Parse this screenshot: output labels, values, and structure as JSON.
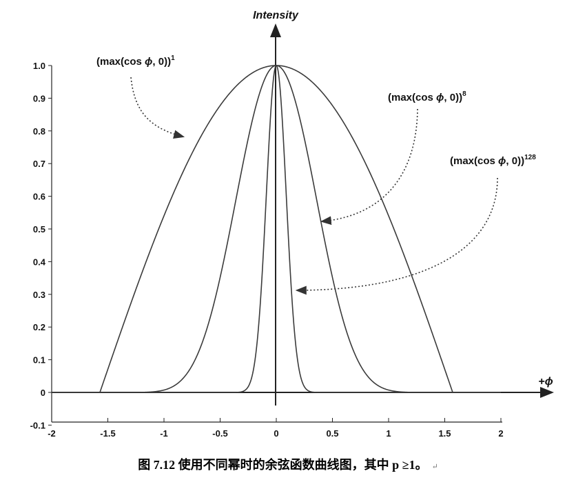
{
  "chart_data": {
    "type": "line",
    "xlabel": "+ϕ",
    "ylabel": "Intensity",
    "xlim": [
      -2,
      2
    ],
    "ylim": [
      -0.1,
      1.0
    ],
    "xticks": [
      "-2",
      "-1.5",
      "-1",
      "-0.5",
      "0",
      "0.5",
      "1",
      "1.5",
      "2"
    ],
    "yticks": [
      "-0.1",
      "0",
      "0.1",
      "0.2",
      "0.3",
      "0.4",
      "0.5",
      "0.6",
      "0.7",
      "0.8",
      "0.9",
      "1.0"
    ],
    "grid": false,
    "series": [
      {
        "name": "(max(cos ϕ, 0))^1",
        "power": 1,
        "x": [
          -2,
          -1.5708,
          -1.5,
          -1.25,
          -1,
          -0.75,
          -0.5,
          -0.25,
          0,
          0.25,
          0.5,
          0.75,
          1,
          1.25,
          1.5,
          1.5708,
          2
        ],
        "y": [
          0,
          0,
          0.071,
          0.315,
          0.54,
          0.732,
          0.878,
          0.969,
          1.0,
          0.969,
          0.878,
          0.732,
          0.54,
          0.315,
          0.071,
          0,
          0
        ]
      },
      {
        "name": "(max(cos ϕ, 0))^8",
        "power": 8,
        "x": [
          -2,
          -1.5,
          -1.25,
          -1,
          -0.75,
          -0.5,
          -0.25,
          0,
          0.25,
          0.5,
          0.75,
          1,
          1.25,
          1.5,
          2
        ],
        "y": [
          0,
          0,
          0.0001,
          0.007,
          0.082,
          0.353,
          0.778,
          1.0,
          0.778,
          0.353,
          0.082,
          0.007,
          0.0001,
          0,
          0
        ]
      },
      {
        "name": "(max(cos ϕ, 0))^128",
        "power": 128,
        "x": [
          -2,
          -0.5,
          -0.3,
          -0.2,
          -0.1,
          0,
          0.1,
          0.2,
          0.3,
          0.5,
          2
        ],
        "y": [
          0,
          0,
          0.003,
          0.078,
          0.527,
          1.0,
          0.527,
          0.078,
          0.003,
          0,
          0
        ]
      }
    ],
    "annotations": [
      {
        "base": "(max(cos ",
        "phi": "ϕ",
        "rest": ", 0))",
        "sup": "1"
      },
      {
        "base": "(max(cos ",
        "phi": "ϕ",
        "rest": ", 0))",
        "sup": "8"
      },
      {
        "base": "(max(cos ",
        "phi": "ϕ",
        "rest": ", 0))",
        "sup": "128"
      }
    ]
  },
  "caption": {
    "text": "图 7.12  使用不同幂时的余弦函数曲线图，其中 p ≥1。",
    "mark": "↵"
  }
}
